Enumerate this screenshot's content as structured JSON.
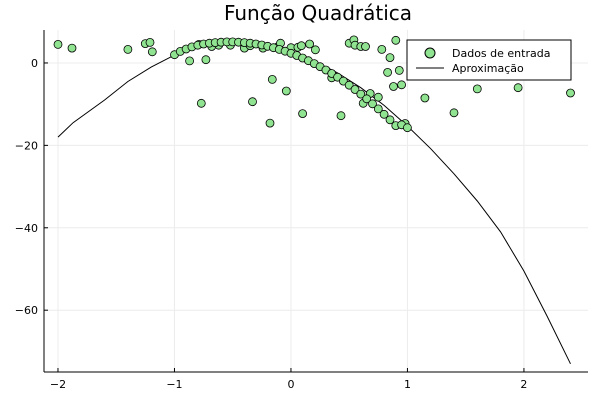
{
  "chart_data": {
    "type": "scatter",
    "title": "Função Quadrática",
    "xlabel": "",
    "ylabel": "",
    "xlim": [
      -2.12,
      2.55
    ],
    "ylim": [
      -75,
      8
    ],
    "x_ticks": [
      -2,
      -1,
      0,
      1,
      2
    ],
    "y_ticks": [
      0,
      -20,
      -40,
      -60
    ],
    "x_tick_labels": [
      "−2",
      "−1",
      "0",
      "1",
      "2"
    ],
    "y_tick_labels": [
      "0",
      "−20",
      "−40",
      "−60"
    ],
    "grid": true,
    "legend_position": "top-right",
    "colors": {
      "scatter_fill": "#90e390",
      "scatter_stroke": "#000000",
      "line": "#000000",
      "grid": "#ececec"
    },
    "series": [
      {
        "name": "Dados de entrada",
        "kind": "scatter",
        "points": [
          [
            -2.0,
            4.5
          ],
          [
            -1.88,
            3.6
          ],
          [
            -1.4,
            3.3
          ],
          [
            -1.25,
            4.7
          ],
          [
            -1.21,
            5.0
          ],
          [
            -1.19,
            2.7
          ],
          [
            -0.87,
            0.5
          ],
          [
            -0.79,
            4.5
          ],
          [
            -0.77,
            -9.8
          ],
          [
            -0.73,
            0.8
          ],
          [
            -0.68,
            4.0
          ],
          [
            -0.62,
            4.3
          ],
          [
            -0.52,
            4.3
          ],
          [
            -0.4,
            3.6
          ],
          [
            -0.35,
            4.2
          ],
          [
            -0.33,
            -9.4
          ],
          [
            -0.24,
            3.6
          ],
          [
            -0.18,
            -14.6
          ],
          [
            -0.16,
            -4.0
          ],
          [
            -0.11,
            4.0
          ],
          [
            -0.09,
            4.8
          ],
          [
            -0.04,
            -6.8
          ],
          [
            0.0,
            3.7
          ],
          [
            0.06,
            3.8
          ],
          [
            0.09,
            4.2
          ],
          [
            0.1,
            -12.3
          ],
          [
            0.16,
            4.6
          ],
          [
            0.21,
            3.2
          ],
          [
            0.35,
            -3.6
          ],
          [
            0.43,
            -12.8
          ],
          [
            0.5,
            4.8
          ],
          [
            0.54,
            5.6
          ],
          [
            0.55,
            4.3
          ],
          [
            0.6,
            4.0
          ],
          [
            0.62,
            -9.8
          ],
          [
            0.64,
            4.0
          ],
          [
            0.68,
            -7.4
          ],
          [
            0.75,
            -8.3
          ],
          [
            0.78,
            3.3
          ],
          [
            0.83,
            -2.3
          ],
          [
            0.85,
            1.3
          ],
          [
            0.88,
            -5.7
          ],
          [
            0.9,
            5.5
          ],
          [
            0.93,
            -1.8
          ],
          [
            0.95,
            -5.3
          ],
          [
            0.98,
            -14.7
          ],
          [
            1.15,
            -8.5
          ],
          [
            1.4,
            -12.1
          ],
          [
            1.6,
            -6.3
          ],
          [
            1.95,
            -6.0
          ],
          [
            2.4,
            -7.3
          ],
          [
            -1.0,
            2.0
          ],
          [
            -0.95,
            2.8
          ],
          [
            -0.9,
            3.4
          ],
          [
            -0.85,
            3.9
          ],
          [
            -0.8,
            4.3
          ],
          [
            -0.75,
            4.6
          ],
          [
            -0.7,
            4.8
          ],
          [
            -0.65,
            4.95
          ],
          [
            -0.6,
            5.05
          ],
          [
            -0.55,
            5.1
          ],
          [
            -0.5,
            5.1
          ],
          [
            -0.45,
            5.05
          ],
          [
            -0.4,
            4.95
          ],
          [
            -0.35,
            4.8
          ],
          [
            -0.3,
            4.6
          ],
          [
            -0.25,
            4.35
          ],
          [
            -0.2,
            4.05
          ],
          [
            -0.15,
            3.7
          ],
          [
            -0.1,
            3.3
          ],
          [
            -0.05,
            2.85
          ],
          [
            0.0,
            2.35
          ],
          [
            0.05,
            1.8
          ],
          [
            0.1,
            1.2
          ],
          [
            0.15,
            0.55
          ],
          [
            0.2,
            -0.15
          ],
          [
            0.25,
            -0.9
          ],
          [
            0.3,
            -1.7
          ],
          [
            0.35,
            -2.55
          ],
          [
            0.4,
            -3.45
          ],
          [
            0.45,
            -4.4
          ],
          [
            0.5,
            -5.4
          ],
          [
            0.55,
            -6.45
          ],
          [
            0.6,
            -7.55
          ],
          [
            0.65,
            -8.7
          ],
          [
            0.7,
            -9.9
          ],
          [
            0.75,
            -11.15
          ],
          [
            0.8,
            -12.45
          ],
          [
            0.85,
            -13.8
          ],
          [
            0.9,
            -15.2
          ],
          [
            0.95,
            -15.0
          ],
          [
            1.0,
            -15.7
          ]
        ]
      },
      {
        "name": "Aproximação",
        "kind": "line",
        "points": [
          [
            -2.0,
            -18.0
          ],
          [
            -1.87,
            -14.5
          ],
          [
            -1.6,
            -9.0
          ],
          [
            -1.4,
            -4.5
          ],
          [
            -1.2,
            -1.0
          ],
          [
            -1.0,
            1.9
          ],
          [
            -0.8,
            3.7
          ],
          [
            -0.6,
            4.8
          ],
          [
            -0.5,
            5.0
          ],
          [
            -0.4,
            4.9
          ],
          [
            -0.2,
            4.2
          ],
          [
            0.0,
            2.7
          ],
          [
            0.2,
            0.5
          ],
          [
            0.4,
            -2.4
          ],
          [
            0.6,
            -6.0
          ],
          [
            0.8,
            -10.3
          ],
          [
            1.0,
            -15.3
          ],
          [
            1.2,
            -20.8
          ],
          [
            1.4,
            -26.9
          ],
          [
            1.6,
            -33.5
          ],
          [
            1.8,
            -41.0
          ],
          [
            2.0,
            -50.5
          ],
          [
            2.2,
            -61.5
          ],
          [
            2.4,
            -73.0
          ]
        ]
      }
    ]
  }
}
